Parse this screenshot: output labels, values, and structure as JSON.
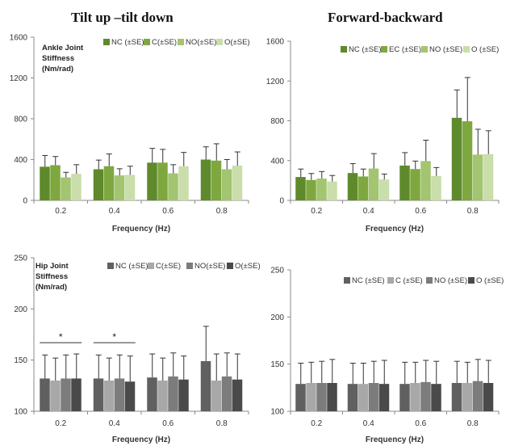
{
  "titles": {
    "left": "Tilt up –tilt down",
    "right": "Forward-backward"
  },
  "chart_data": [
    {
      "type": "bar",
      "panel": "top-left",
      "annotation": [
        "Ankle Joint",
        "Stiffness",
        "(Nm/rad)"
      ],
      "categories": [
        "0.2",
        "0.4",
        "0.6",
        "0.8"
      ],
      "xlabel": "Frequency (Hz)",
      "ylim": [
        0,
        1600
      ],
      "yticks": [
        0,
        400,
        800,
        1200,
        1600
      ],
      "legend_position": "top",
      "series": [
        {
          "name": "NC (±SE)",
          "color": "#5e8a2c",
          "values": [
            330,
            305,
            370,
            400
          ],
          "errors": [
            110,
            90,
            140,
            125
          ]
        },
        {
          "name": "C(±SE)",
          "color": "#7ea83f",
          "values": [
            345,
            335,
            370,
            390
          ],
          "errors": [
            85,
            120,
            130,
            165
          ]
        },
        {
          "name": "NO(±SE)",
          "color": "#a3c470",
          "values": [
            225,
            245,
            265,
            305
          ],
          "errors": [
            50,
            65,
            85,
            95
          ]
        },
        {
          "name": "O(±SE)",
          "color": "#c9deaa",
          "values": [
            260,
            250,
            335,
            340
          ],
          "errors": [
            90,
            85,
            135,
            135
          ]
        }
      ]
    },
    {
      "type": "bar",
      "panel": "top-right",
      "categories": [
        "0.2",
        "0.4",
        "0.6",
        "0.8"
      ],
      "xlabel": "Frequency (Hz)",
      "ylim": [
        0,
        1600
      ],
      "yticks": [
        0,
        400,
        800,
        1200,
        1600
      ],
      "legend_position": "top",
      "series": [
        {
          "name": "NC (±SE)",
          "color": "#5e8a2c",
          "values": [
            235,
            275,
            350,
            830
          ],
          "errors": [
            80,
            95,
            130,
            280
          ]
        },
        {
          "name": "EC (±SE)",
          "color": "#7ea83f",
          "values": [
            205,
            240,
            315,
            795
          ],
          "errors": [
            65,
            75,
            80,
            440
          ]
        },
        {
          "name": "NO (±SE)",
          "color": "#a3c470",
          "values": [
            220,
            320,
            395,
            460
          ],
          "errors": [
            70,
            150,
            210,
            255
          ]
        },
        {
          "name": "O (±SE)",
          "color": "#c9deaa",
          "values": [
            190,
            210,
            245,
            465
          ],
          "errors": [
            60,
            55,
            85,
            235
          ]
        }
      ]
    },
    {
      "type": "bar",
      "panel": "bottom-left",
      "annotation": [
        "Hip Joint",
        "Stiffness",
        "(Nm/rad)"
      ],
      "categories": [
        "0.2",
        "0.4",
        "0.6",
        "0.8"
      ],
      "xlabel": "Frequency (Hz)",
      "ylim": [
        100,
        250
      ],
      "yticks": [
        100,
        150,
        200,
        250
      ],
      "legend_position": "top",
      "significance": [
        {
          "category": "0.2",
          "label": "*"
        },
        {
          "category": "0.4",
          "label": "*"
        }
      ],
      "series": [
        {
          "name": "NC (±SE)",
          "color": "#606060",
          "values": [
            132,
            132,
            133,
            149
          ],
          "errors": [
            23,
            23,
            23,
            34
          ]
        },
        {
          "name": "C(±SE)",
          "color": "#a8a8a8",
          "values": [
            130,
            130,
            130,
            130
          ],
          "errors": [
            22,
            22,
            22,
            26
          ]
        },
        {
          "name": "NO(±SE)",
          "color": "#7c7c7c",
          "values": [
            132,
            132,
            134,
            134
          ],
          "errors": [
            23,
            23,
            23,
            23
          ]
        },
        {
          "name": "O(±SE)",
          "color": "#4a4a4a",
          "values": [
            132,
            129,
            131,
            131
          ],
          "errors": [
            24,
            25,
            23,
            25
          ]
        }
      ]
    },
    {
      "type": "bar",
      "panel": "bottom-right",
      "categories": [
        "0.2",
        "0.4",
        "0.6",
        "0.8"
      ],
      "xlabel": "Frequency (Hz)",
      "ylim": [
        100,
        250
      ],
      "yticks": [
        100,
        150,
        200,
        250
      ],
      "legend_position": "top",
      "series": [
        {
          "name": "NC (±SE)",
          "color": "#606060",
          "values": [
            129,
            129,
            129,
            130
          ],
          "errors": [
            22,
            22,
            23,
            23
          ]
        },
        {
          "name": "C (±SE)",
          "color": "#a8a8a8",
          "values": [
            130,
            129,
            130,
            130
          ],
          "errors": [
            22,
            22,
            22,
            22
          ]
        },
        {
          "name": "NO (±SE)",
          "color": "#7c7c7c",
          "values": [
            130,
            130,
            131,
            132
          ],
          "errors": [
            23,
            23,
            23,
            23
          ]
        },
        {
          "name": "O (±SE)",
          "color": "#4a4a4a",
          "values": [
            130,
            129,
            129,
            130
          ],
          "errors": [
            25,
            25,
            24,
            24
          ]
        }
      ]
    }
  ]
}
